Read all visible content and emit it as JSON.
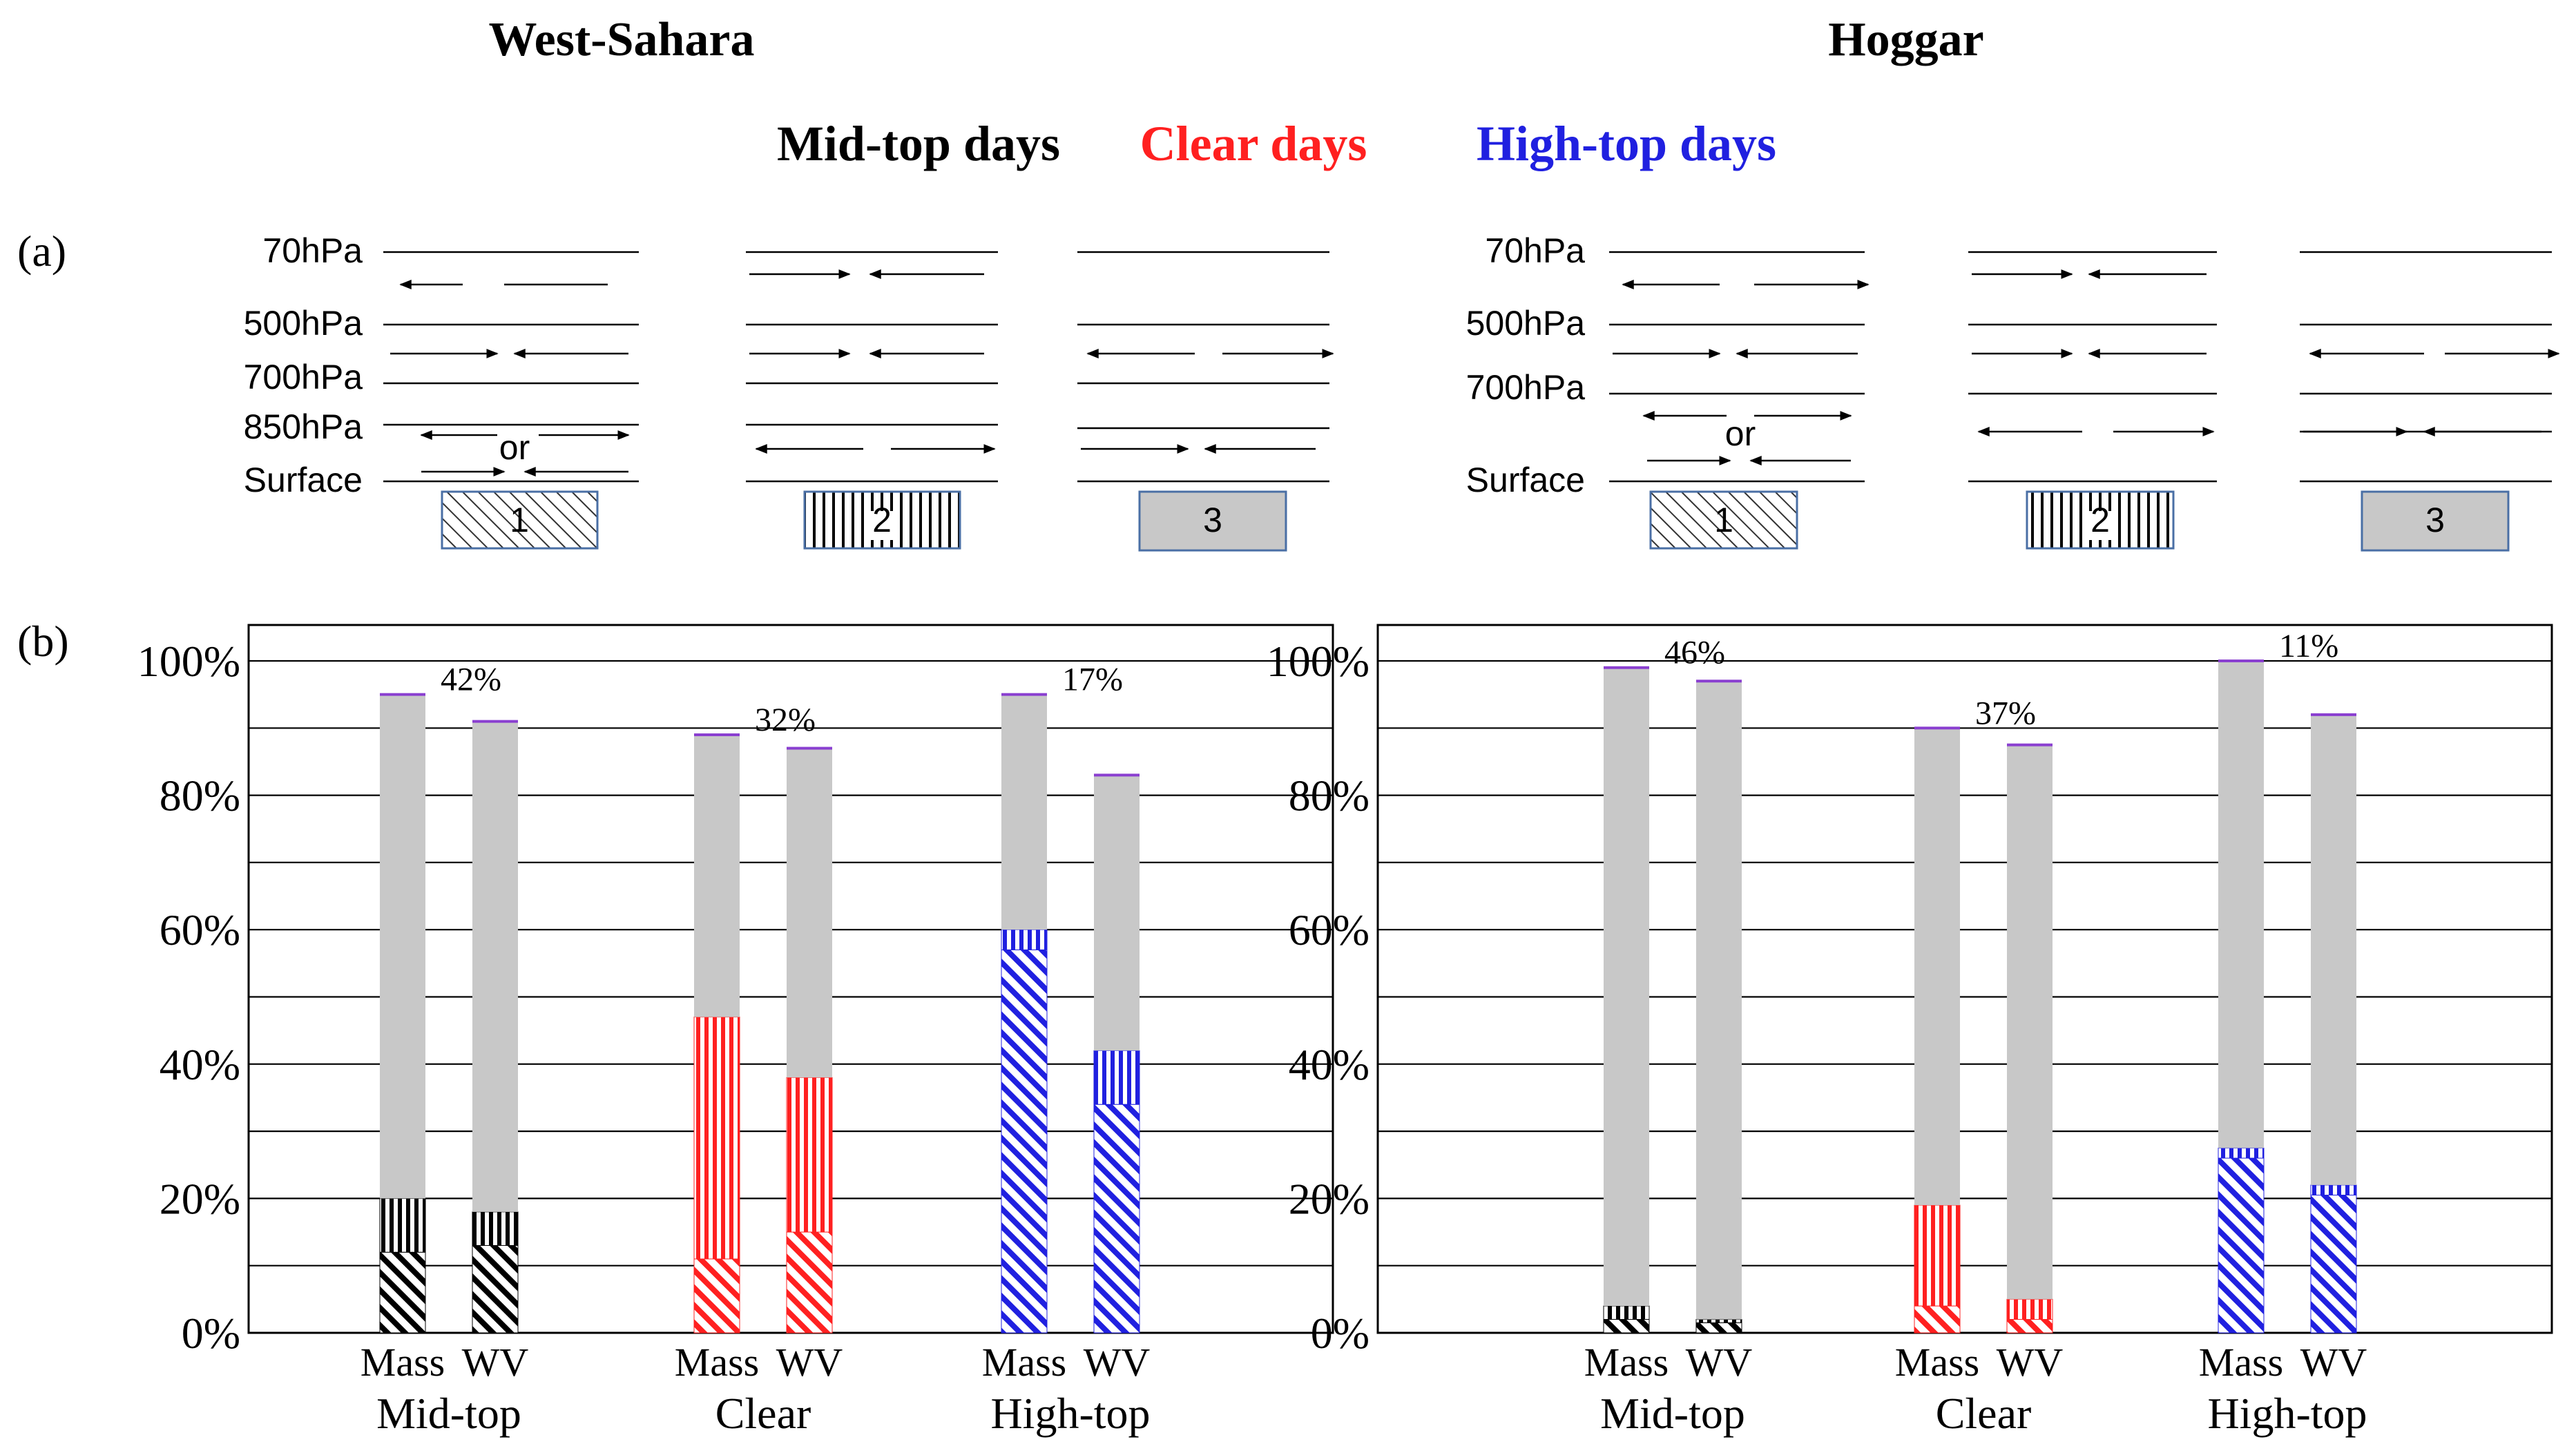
{
  "titles": {
    "left": "West-Sahara",
    "right": "Hoggar"
  },
  "legend": {
    "mid": "Mid-top days",
    "clear": "Clear days",
    "high": "High-top days"
  },
  "colors": {
    "mid": "#000000",
    "clear": "#ff2020",
    "high": "#2020e0",
    "gray": "#c8c8c8",
    "cap": "#8a3fd0"
  },
  "panel_labels": {
    "a": "(a)",
    "b": "(b)"
  },
  "schematic": {
    "left_levels": [
      "70hPa",
      "500hPa",
      "700hPa",
      "850hPa",
      "Surface"
    ],
    "right_levels": [
      "70hPa",
      "500hPa",
      "700hPa",
      "Surface"
    ],
    "or_text": "or",
    "box_labels": [
      "1",
      "2",
      "3"
    ]
  },
  "chart_data": [
    {
      "type": "bar",
      "title": "West-Sahara",
      "group_labels": [
        "Mid-top",
        "Clear",
        "High-top"
      ],
      "bar_labels": [
        "Mass",
        "WV"
      ],
      "y_ticks": [
        "0%",
        "20%",
        "40%",
        "60%",
        "80%",
        "100%"
      ],
      "ylim": [
        0,
        100
      ],
      "segments": [
        "1",
        "2",
        "3"
      ],
      "groups": [
        {
          "name": "Mid-top",
          "color_key": "mid",
          "pct_label": "42%",
          "bars": [
            {
              "label": "Mass",
              "values": [
                12,
                8,
                75
              ]
            },
            {
              "label": "WV",
              "values": [
                13,
                5,
                73
              ]
            }
          ]
        },
        {
          "name": "Clear",
          "color_key": "clear",
          "pct_label": "32%",
          "bars": [
            {
              "label": "Mass",
              "values": [
                11,
                36,
                42
              ]
            },
            {
              "label": "WV",
              "values": [
                15,
                23,
                49
              ]
            }
          ]
        },
        {
          "name": "High-top",
          "color_key": "high",
          "pct_label": "17%",
          "bars": [
            {
              "label": "Mass",
              "values": [
                57,
                3,
                35
              ]
            },
            {
              "label": "WV",
              "values": [
                34,
                8,
                41
              ]
            }
          ]
        }
      ]
    },
    {
      "type": "bar",
      "title": "Hoggar",
      "group_labels": [
        "Mid-top",
        "Clear",
        "High-top"
      ],
      "bar_labels": [
        "Mass",
        "WV"
      ],
      "y_ticks": [
        "0%",
        "20%",
        "40%",
        "60%",
        "80%",
        "100%"
      ],
      "ylim": [
        0,
        100
      ],
      "segments": [
        "1",
        "2",
        "3"
      ],
      "groups": [
        {
          "name": "Mid-top",
          "color_key": "mid",
          "pct_label": "46%",
          "bars": [
            {
              "label": "Mass",
              "values": [
                2,
                2,
                95
              ]
            },
            {
              "label": "WV",
              "values": [
                1.5,
                0.5,
                95
              ]
            }
          ]
        },
        {
          "name": "Clear",
          "color_key": "clear",
          "pct_label": "37%",
          "bars": [
            {
              "label": "Mass",
              "values": [
                4,
                15,
                71
              ]
            },
            {
              "label": "WV",
              "values": [
                2,
                3,
                82.5
              ]
            }
          ]
        },
        {
          "name": "High-top",
          "color_key": "high",
          "pct_label": "11%",
          "bars": [
            {
              "label": "Mass",
              "values": [
                26,
                1.5,
                72.5
              ]
            },
            {
              "label": "WV",
              "values": [
                20.5,
                1.5,
                70
              ]
            }
          ]
        }
      ]
    }
  ]
}
